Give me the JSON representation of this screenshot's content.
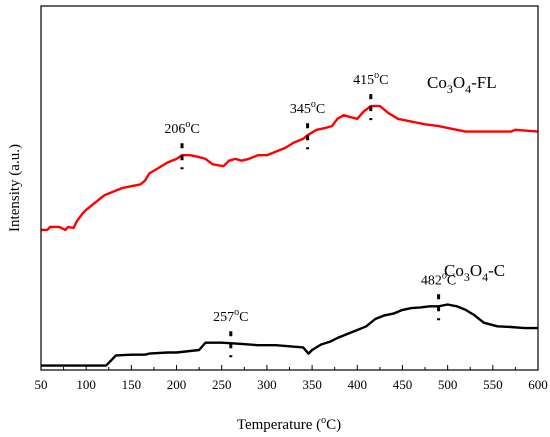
{
  "chart_data": {
    "type": "line",
    "xlabel": "Temperature (",
    "xlabel_sup": "o",
    "xlabel_suffix": "C)",
    "ylabel": "Intensity (a.u.)",
    "xlim": [
      50,
      600
    ],
    "ylim": [
      0,
      1
    ],
    "x_ticks": [
      "50",
      "100",
      "150",
      "200",
      "250",
      "300",
      "350",
      "400",
      "450",
      "500",
      "550",
      "600"
    ],
    "grid": false,
    "series": [
      {
        "name_parts": [
          "Co",
          "3",
          "O",
          "4",
          "-FL"
        ],
        "color": "#ff0000",
        "x": [
          50,
          57,
          60,
          70,
          77,
          80,
          86,
          90,
          96,
          100,
          110,
          120,
          130,
          140,
          150,
          160,
          165,
          170,
          180,
          190,
          200,
          206,
          215,
          225,
          232,
          240,
          252,
          258,
          265,
          272,
          280,
          290,
          300,
          310,
          320,
          330,
          340,
          345,
          355,
          365,
          372,
          378,
          385,
          392,
          400,
          407,
          415,
          425,
          435,
          445,
          455,
          465,
          475,
          490,
          500,
          510,
          520,
          530,
          550,
          570,
          575,
          600
        ],
        "y": [
          0.385,
          0.385,
          0.393,
          0.393,
          0.385,
          0.393,
          0.39,
          0.41,
          0.43,
          0.44,
          0.46,
          0.48,
          0.49,
          0.5,
          0.505,
          0.51,
          0.52,
          0.54,
          0.555,
          0.57,
          0.58,
          0.59,
          0.59,
          0.585,
          0.58,
          0.565,
          0.56,
          0.575,
          0.58,
          0.575,
          0.58,
          0.59,
          0.59,
          0.6,
          0.61,
          0.625,
          0.635,
          0.645,
          0.66,
          0.665,
          0.67,
          0.69,
          0.7,
          0.695,
          0.69,
          0.71,
          0.725,
          0.725,
          0.705,
          0.69,
          0.685,
          0.68,
          0.675,
          0.67,
          0.665,
          0.66,
          0.655,
          0.655,
          0.655,
          0.655,
          0.66,
          0.655
        ]
      },
      {
        "name_parts": [
          "Co",
          "3",
          "O",
          "4",
          "-C"
        ],
        "color": "#000000",
        "x": [
          50,
          75,
          100,
          122,
          127,
          133,
          150,
          165,
          170,
          190,
          200,
          225,
          232,
          250,
          270,
          290,
          310,
          340,
          346,
          350,
          360,
          370,
          380,
          390,
          400,
          410,
          420,
          430,
          440,
          450,
          460,
          470,
          480,
          490,
          500,
          510,
          520,
          530,
          540,
          555,
          570,
          585,
          600
        ],
        "y": [
          0.012,
          0.012,
          0.012,
          0.012,
          0.025,
          0.04,
          0.042,
          0.042,
          0.045,
          0.048,
          0.048,
          0.055,
          0.075,
          0.075,
          0.072,
          0.068,
          0.068,
          0.062,
          0.045,
          0.055,
          0.07,
          0.078,
          0.09,
          0.1,
          0.11,
          0.12,
          0.14,
          0.15,
          0.155,
          0.165,
          0.17,
          0.172,
          0.175,
          0.175,
          0.18,
          0.175,
          0.165,
          0.15,
          0.13,
          0.12,
          0.118,
          0.115,
          0.115
        ]
      }
    ],
    "annotations": [
      {
        "series": 0,
        "label": "206",
        "sup": "o",
        "suffix": "C",
        "x": 206
      },
      {
        "series": 0,
        "label": "345",
        "sup": "o",
        "suffix": "C",
        "x": 345
      },
      {
        "series": 0,
        "label": "415",
        "sup": "o",
        "suffix": "C",
        "x": 415
      },
      {
        "series": 1,
        "label": "257",
        "sup": "o",
        "suffix": "C",
        "x": 260
      },
      {
        "series": 1,
        "label": "482",
        "sup": "o",
        "suffix": "C",
        "x": 490
      }
    ]
  }
}
